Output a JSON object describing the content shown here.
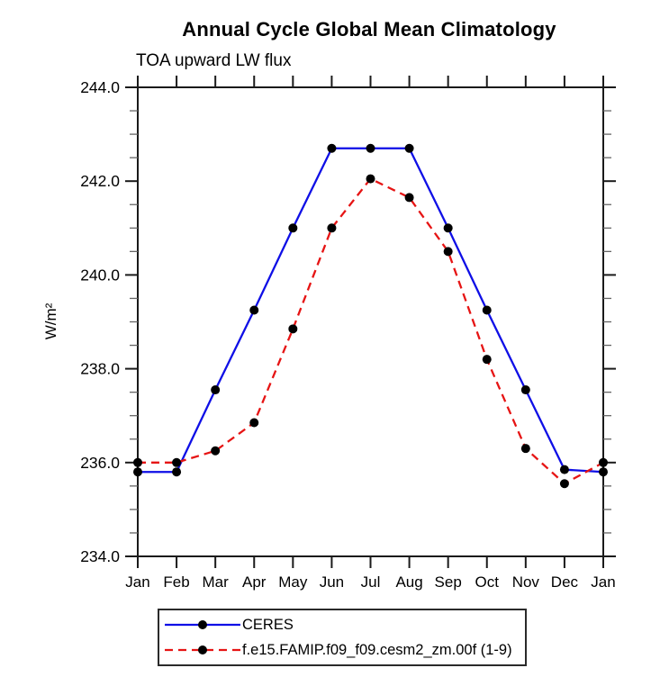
{
  "chart_data": {
    "type": "line",
    "title": "Annual Cycle Global Mean Climatology",
    "subtitle": "TOA upward LW flux",
    "ylabel": "W/m²",
    "xlabel": "",
    "categories": [
      "Jan",
      "Feb",
      "Mar",
      "Apr",
      "May",
      "Jun",
      "Jul",
      "Aug",
      "Sep",
      "Oct",
      "Nov",
      "Dec",
      "Jan"
    ],
    "ylim": [
      234.0,
      244.0
    ],
    "ytick_major_interval": 2.0,
    "ytick_minor_interval": 0.5,
    "ytick_labels": [
      "244.0",
      "242.0",
      "240.0",
      "238.0",
      "236.0",
      "234.0"
    ],
    "grid": false,
    "legend_position": "bottom",
    "marker": "filled-circle",
    "marker_color": "#000000",
    "axis_color": "#1a1a1a",
    "series": [
      {
        "name": "CERES",
        "color": "#0f0fe6",
        "style": "solid",
        "values": [
          235.8,
          235.8,
          237.55,
          239.25,
          241.0,
          242.7,
          242.7,
          242.7,
          241.0,
          239.25,
          237.55,
          235.85,
          235.8
        ]
      },
      {
        "name": "f.e15.FAMIP.f09_f09.cesm2_zm.00f (1-9)",
        "color": "#e61414",
        "style": "dashed",
        "values": [
          236.0,
          236.0,
          236.25,
          236.85,
          238.85,
          241.0,
          242.05,
          241.65,
          240.5,
          238.2,
          236.3,
          235.55,
          236.0
        ]
      }
    ]
  }
}
